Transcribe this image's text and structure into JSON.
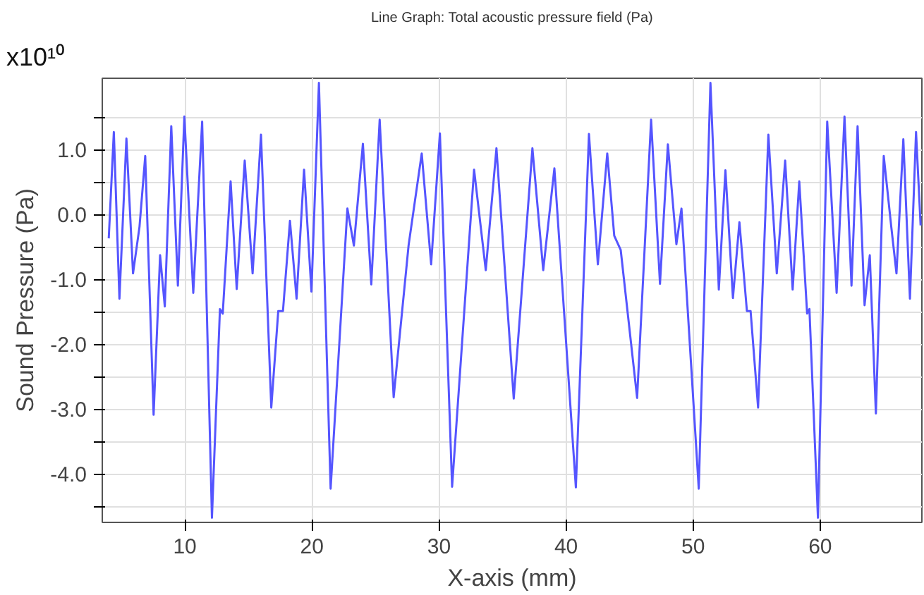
{
  "chart_data": {
    "type": "line",
    "title": "Line Graph: Total acoustic pressure field (Pa)",
    "xlabel": "X-axis (mm)",
    "ylabel": "Sound Pressure (Pa)",
    "annotations": [
      "x10¹⁰"
    ],
    "xlim": [
      3.5,
      68
    ],
    "xticks": [
      10,
      20,
      30,
      40,
      50,
      60
    ],
    "ylim": [
      -4.75,
      2.1
    ],
    "yticks": [
      {
        "value": -4.5,
        "label": null
      },
      {
        "value": -4,
        "label": "-4.0"
      },
      {
        "value": -3.5,
        "label": null
      },
      {
        "value": -3,
        "label": "-3.0"
      },
      {
        "value": -2.5,
        "label": null
      },
      {
        "value": -2,
        "label": "-2.0"
      },
      {
        "value": -1.5,
        "label": null
      },
      {
        "value": -1,
        "label": "-1.0"
      },
      {
        "value": -0.5,
        "label": null
      },
      {
        "value": 0,
        "label": "0.0"
      },
      {
        "value": 0.5,
        "label": null
      },
      {
        "value": 1,
        "label": "1.0"
      },
      {
        "value": 1.5,
        "label": null
      }
    ],
    "grid": true,
    "marker": "none",
    "line_style": "solid",
    "series": [
      {
        "color": "#5555ff",
        "x": [
          4.01,
          4.41,
          4.85,
          5.4,
          5.92,
          6.43,
          6.88,
          7.54,
          8.05,
          8.42,
          8.93,
          9.45,
          9.96,
          10.66,
          11.36,
          12.13,
          12.76,
          12.98,
          13.6,
          14.08,
          14.71,
          15.33,
          15.99,
          16.8,
          17.35,
          17.72,
          18.27,
          18.79,
          19.38,
          19.96,
          20.55,
          21.47,
          22.79,
          23.3,
          24.01,
          24.67,
          25.33,
          26.43,
          27.61,
          28.64,
          29.38,
          30.07,
          31.03,
          32.76,
          33.68,
          34.52,
          35.88,
          37.35,
          38.2,
          39.08,
          40.77,
          41.8,
          42.5,
          43.24,
          43.79,
          44.3,
          45.59,
          46.69,
          47.39,
          48.01,
          48.68,
          49.08,
          50.44,
          51.36,
          52.02,
          52.54,
          53.13,
          53.64,
          54.23,
          54.52,
          55.11,
          55.92,
          56.58,
          57.24,
          57.83,
          58.35,
          58.97,
          59.15,
          59.82,
          60.55,
          61.29,
          61.91,
          62.46,
          62.94,
          63.49,
          63.9,
          64.38,
          65.0,
          65.59,
          66.0,
          66.54,
          67.06,
          67.54,
          67.9
        ],
        "values": [
          -0.37,
          1.27,
          -1.3,
          1.17,
          -0.91,
          -0.19,
          0.9,
          -3.09,
          -0.63,
          -1.42,
          1.36,
          -1.1,
          1.51,
          -1.21,
          1.43,
          -4.68,
          -1.46,
          -1.53,
          0.51,
          -1.15,
          0.83,
          -0.91,
          1.23,
          -2.98,
          -1.49,
          -1.49,
          -0.1,
          -1.3,
          0.69,
          -1.19,
          2.03,
          -4.23,
          0.09,
          -0.48,
          1.09,
          -1.08,
          1.46,
          -2.82,
          -0.47,
          0.94,
          -0.77,
          1.25,
          -4.2,
          0.69,
          -0.86,
          1.02,
          -2.84,
          1.02,
          -0.86,
          0.71,
          -4.21,
          1.24,
          -0.77,
          0.94,
          -0.33,
          -0.55,
          -2.83,
          1.46,
          -1.07,
          1.08,
          -0.46,
          0.09,
          -4.23,
          2.03,
          -1.16,
          0.68,
          -1.29,
          -0.12,
          -1.49,
          -1.49,
          -2.98,
          1.23,
          -0.91,
          0.83,
          -1.16,
          0.51,
          -1.53,
          -1.46,
          -4.68,
          1.43,
          -1.21,
          1.51,
          -1.1,
          1.36,
          -1.4,
          -0.63,
          -3.07,
          0.9,
          -0.19,
          -0.91,
          1.16,
          -1.3,
          1.27,
          -0.17
        ]
      }
    ]
  }
}
